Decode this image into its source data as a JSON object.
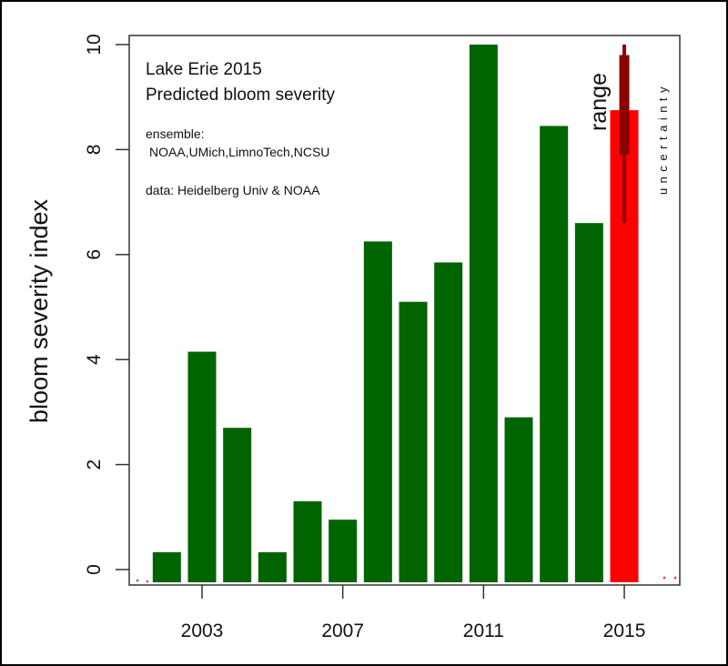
{
  "chart_data": {
    "type": "bar",
    "title": "",
    "xlabel": "",
    "ylabel": "bloom severity index",
    "ylim": [
      0,
      10
    ],
    "xlim": [
      2001,
      2016.5
    ],
    "grid": false,
    "categories": [
      2002,
      2003,
      2004,
      2005,
      2006,
      2007,
      2008,
      2009,
      2010,
      2011,
      2012,
      2013,
      2014,
      2015
    ],
    "values": [
      0.33,
      4.15,
      2.7,
      0.33,
      1.3,
      0.95,
      6.25,
      5.1,
      5.85,
      10.0,
      2.9,
      8.45,
      6.6,
      8.75
    ],
    "bar_colors": {
      "observed": "#006400",
      "predicted": "#ff0000"
    },
    "predicted_year": 2015,
    "uncertainty": {
      "full_range": [
        6.6,
        10.0
      ],
      "inner_range": [
        7.9,
        9.8
      ],
      "color": "#8b0000",
      "label": "range",
      "side_label": "uncertainty"
    },
    "x_ticks": [
      2003,
      2007,
      2011,
      2015
    ],
    "y_ticks": [
      0,
      2,
      4,
      6,
      8,
      10
    ],
    "annotations": {
      "title_line1": "Lake Erie 2015",
      "title_line2": "Predicted bloom severity",
      "ensemble_label": "ensemble:",
      "ensemble_members": "NOAA,UMich,LimnoTech,NCSU",
      "data_source": "data: Heidelberg Univ & NOAA"
    }
  }
}
